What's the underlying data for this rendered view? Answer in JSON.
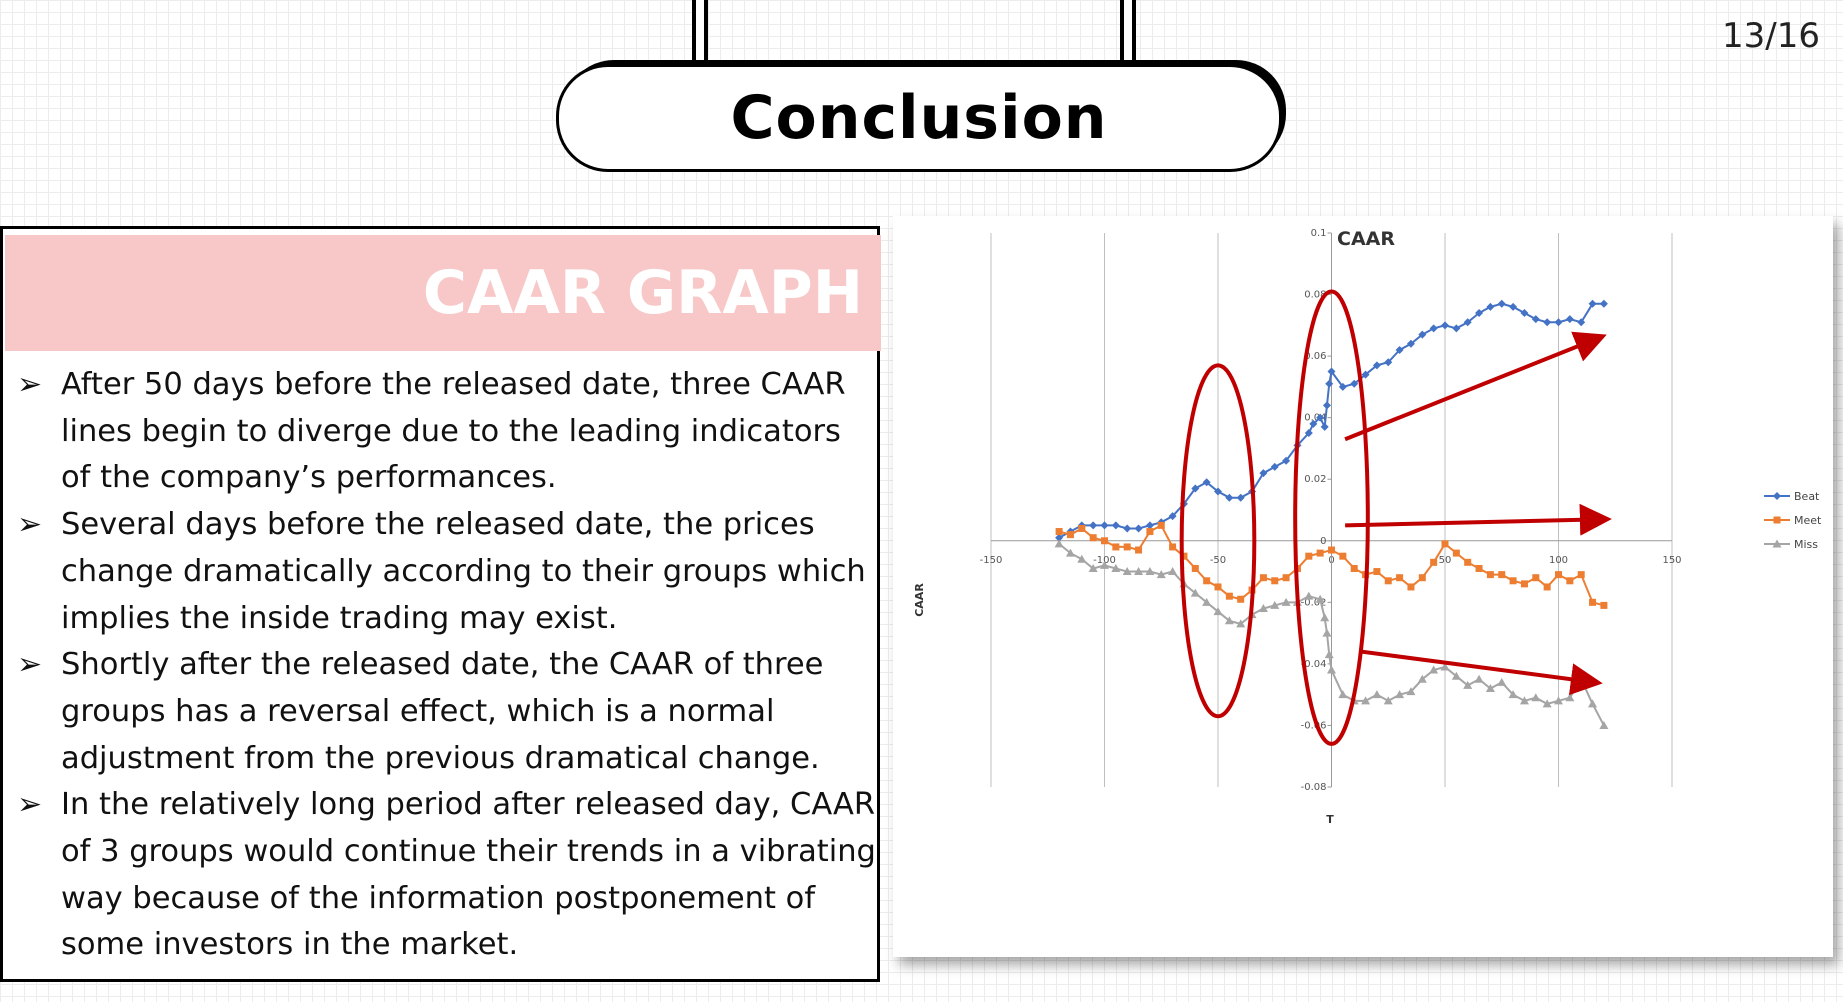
{
  "page_number": "13/16",
  "title": "Conclusion",
  "panel": {
    "heading": "CAAR GRAPH",
    "bullet_symbol": "➢",
    "bullets": [
      "After 50 days before the released date, three CAAR lines begin to diverge due to the leading indicators of the company’s performances.",
      "Several days before the released date, the prices change dramatically according to their groups which implies the inside trading may exist.",
      "Shortly after the released date, the CAAR of three groups has a reversal effect, which is a normal adjustment from the previous dramatical change.",
      "In the relatively long period after released day, CAAR of 3 groups would continue their trends in a vibrating way because of the information postponement of some investors in the market."
    ]
  },
  "chart_data": {
    "type": "line",
    "title": "CAAR",
    "xlabel": "T",
    "ylabel": "CAAR",
    "xlim": [
      -150,
      150
    ],
    "ylim": [
      -0.08,
      0.1
    ],
    "x_ticks": [
      "-150",
      "-100",
      "-50",
      "0",
      "50",
      "100",
      "150"
    ],
    "y_ticks": [
      "0.1",
      "0.08",
      "0.06",
      "0.04",
      "0.02",
      "0",
      "-0.02",
      "-0.04",
      "-0.06",
      "-0.08"
    ],
    "grid": "vertical",
    "legend_position": "right",
    "series": [
      {
        "name": "Beat",
        "color": "#4472c4",
        "marker": "diamond",
        "points": [
          [
            -120,
            0.001
          ],
          [
            -115,
            0.003
          ],
          [
            -110,
            0.005
          ],
          [
            -105,
            0.005
          ],
          [
            -100,
            0.005
          ],
          [
            -95,
            0.005
          ],
          [
            -90,
            0.004
          ],
          [
            -85,
            0.004
          ],
          [
            -80,
            0.005
          ],
          [
            -75,
            0.006
          ],
          [
            -70,
            0.008
          ],
          [
            -65,
            0.012
          ],
          [
            -60,
            0.017
          ],
          [
            -55,
            0.019
          ],
          [
            -50,
            0.016
          ],
          [
            -45,
            0.014
          ],
          [
            -40,
            0.014
          ],
          [
            -35,
            0.016
          ],
          [
            -30,
            0.022
          ],
          [
            -25,
            0.024
          ],
          [
            -20,
            0.026
          ],
          [
            -15,
            0.031
          ],
          [
            -10,
            0.035
          ],
          [
            -8,
            0.038
          ],
          [
            -5,
            0.04
          ],
          [
            -3,
            0.037
          ],
          [
            -2,
            0.044
          ],
          [
            -1,
            0.051
          ],
          [
            0,
            0.055
          ],
          [
            5,
            0.05
          ],
          [
            10,
            0.051
          ],
          [
            15,
            0.054
          ],
          [
            20,
            0.057
          ],
          [
            25,
            0.058
          ],
          [
            30,
            0.062
          ],
          [
            35,
            0.064
          ],
          [
            40,
            0.067
          ],
          [
            45,
            0.069
          ],
          [
            50,
            0.07
          ],
          [
            55,
            0.069
          ],
          [
            60,
            0.071
          ],
          [
            65,
            0.074
          ],
          [
            70,
            0.076
          ],
          [
            75,
            0.077
          ],
          [
            80,
            0.076
          ],
          [
            85,
            0.074
          ],
          [
            90,
            0.072
          ],
          [
            95,
            0.071
          ],
          [
            100,
            0.071
          ],
          [
            105,
            0.072
          ],
          [
            110,
            0.071
          ],
          [
            115,
            0.077
          ],
          [
            120,
            0.077
          ]
        ]
      },
      {
        "name": "Meet",
        "color": "#ed7d31",
        "marker": "square",
        "points": [
          [
            -120,
            0.003
          ],
          [
            -115,
            0.002
          ],
          [
            -110,
            0.004
          ],
          [
            -105,
            0.001
          ],
          [
            -100,
            0.0
          ],
          [
            -95,
            -0.002
          ],
          [
            -90,
            -0.002
          ],
          [
            -85,
            -0.003
          ],
          [
            -80,
            0.003
          ],
          [
            -75,
            0.005
          ],
          [
            -70,
            -0.002
          ],
          [
            -65,
            -0.005
          ],
          [
            -60,
            -0.009
          ],
          [
            -55,
            -0.013
          ],
          [
            -50,
            -0.015
          ],
          [
            -45,
            -0.018
          ],
          [
            -40,
            -0.019
          ],
          [
            -35,
            -0.016
          ],
          [
            -30,
            -0.012
          ],
          [
            -25,
            -0.013
          ],
          [
            -20,
            -0.012
          ],
          [
            -15,
            -0.009
          ],
          [
            -10,
            -0.005
          ],
          [
            -5,
            -0.004
          ],
          [
            0,
            -0.003
          ],
          [
            5,
            -0.005
          ],
          [
            10,
            -0.009
          ],
          [
            15,
            -0.011
          ],
          [
            20,
            -0.01
          ],
          [
            25,
            -0.013
          ],
          [
            30,
            -0.012
          ],
          [
            35,
            -0.015
          ],
          [
            40,
            -0.012
          ],
          [
            45,
            -0.007
          ],
          [
            50,
            -0.001
          ],
          [
            55,
            -0.004
          ],
          [
            60,
            -0.007
          ],
          [
            65,
            -0.009
          ],
          [
            70,
            -0.011
          ],
          [
            75,
            -0.011
          ],
          [
            80,
            -0.013
          ],
          [
            85,
            -0.014
          ],
          [
            90,
            -0.012
          ],
          [
            95,
            -0.015
          ],
          [
            100,
            -0.011
          ],
          [
            105,
            -0.013
          ],
          [
            110,
            -0.011
          ],
          [
            115,
            -0.02
          ],
          [
            120,
            -0.021
          ]
        ]
      },
      {
        "name": "Miss",
        "color": "#a5a5a5",
        "marker": "triangle",
        "points": [
          [
            -120,
            -0.001
          ],
          [
            -115,
            -0.004
          ],
          [
            -110,
            -0.006
          ],
          [
            -105,
            -0.009
          ],
          [
            -100,
            -0.008
          ],
          [
            -95,
            -0.009
          ],
          [
            -90,
            -0.01
          ],
          [
            -85,
            -0.01
          ],
          [
            -80,
            -0.01
          ],
          [
            -75,
            -0.011
          ],
          [
            -70,
            -0.01
          ],
          [
            -65,
            -0.014
          ],
          [
            -60,
            -0.017
          ],
          [
            -55,
            -0.02
          ],
          [
            -50,
            -0.023
          ],
          [
            -45,
            -0.026
          ],
          [
            -40,
            -0.027
          ],
          [
            -35,
            -0.024
          ],
          [
            -30,
            -0.022
          ],
          [
            -25,
            -0.021
          ],
          [
            -20,
            -0.02
          ],
          [
            -15,
            -0.02
          ],
          [
            -10,
            -0.018
          ],
          [
            -5,
            -0.019
          ],
          [
            -3,
            -0.025
          ],
          [
            -2,
            -0.03
          ],
          [
            -1,
            -0.037
          ],
          [
            0,
            -0.042
          ],
          [
            5,
            -0.05
          ],
          [
            10,
            -0.052
          ],
          [
            15,
            -0.052
          ],
          [
            20,
            -0.05
          ],
          [
            25,
            -0.052
          ],
          [
            30,
            -0.05
          ],
          [
            35,
            -0.049
          ],
          [
            40,
            -0.045
          ],
          [
            45,
            -0.042
          ],
          [
            50,
            -0.041
          ],
          [
            55,
            -0.044
          ],
          [
            60,
            -0.047
          ],
          [
            65,
            -0.045
          ],
          [
            70,
            -0.048
          ],
          [
            75,
            -0.046
          ],
          [
            80,
            -0.05
          ],
          [
            85,
            -0.052
          ],
          [
            90,
            -0.051
          ],
          [
            95,
            -0.053
          ],
          [
            100,
            -0.052
          ],
          [
            105,
            -0.051
          ],
          [
            110,
            -0.045
          ],
          [
            115,
            -0.053
          ],
          [
            120,
            -0.06
          ]
        ]
      }
    ],
    "annotations": {
      "ellipses": [
        {
          "x_center": -50,
          "x_halfwidth": 16,
          "y_top": 0.057,
          "y_bottom": -0.057
        },
        {
          "x_center": 0,
          "x_halfwidth": 16,
          "y_top": 0.081,
          "y_bottom": -0.066
        }
      ],
      "arrows": [
        {
          "from": [
            6,
            0.033
          ],
          "to": [
            118,
            0.066
          ]
        },
        {
          "from": [
            6,
            0.005
          ],
          "to": [
            120,
            0.007
          ]
        },
        {
          "from": [
            13,
            -0.036
          ],
          "to": [
            116,
            -0.046
          ]
        }
      ],
      "color": "#c00000"
    }
  }
}
